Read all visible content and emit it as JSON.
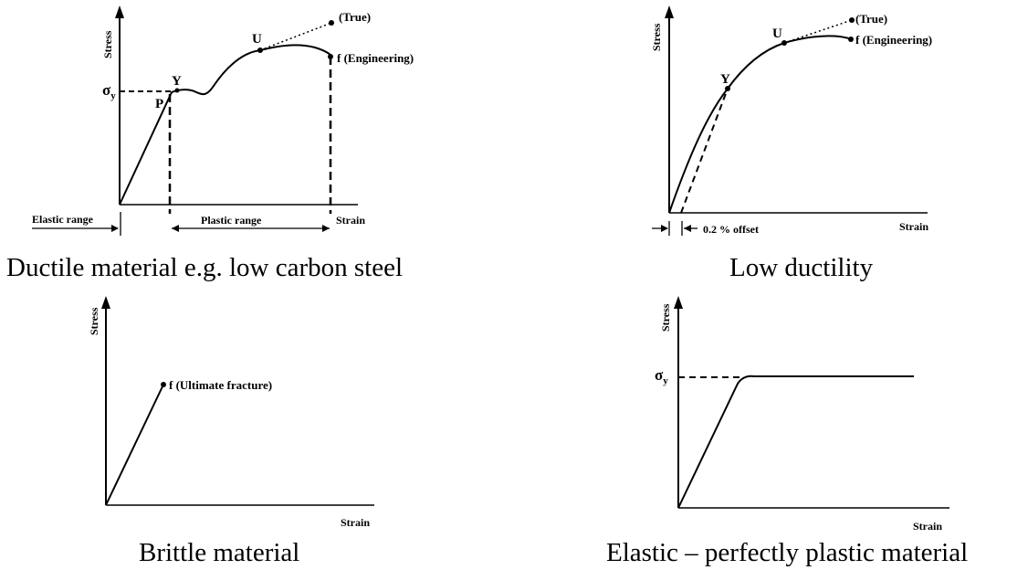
{
  "panels": {
    "ductile": {
      "caption": "Ductile material e.g. low carbon steel",
      "y_axis": "Stress",
      "x_axis": "Strain",
      "sigma": "σ",
      "sigma_sub": "y",
      "point_p": "P",
      "point_y": "Y",
      "point_u": "U",
      "true_label": "(True)",
      "eng_label": "f (Engineering)",
      "elastic_range": "Elastic range",
      "plastic_range": "Plastic range"
    },
    "low_ductility": {
      "caption": "Low ductility",
      "y_axis": "Stress",
      "x_axis": "Strain",
      "point_y": "Y",
      "point_u": "U",
      "true_label": "(True)",
      "eng_label": "f (Engineering)",
      "offset_label": "0.2 % offset"
    },
    "brittle": {
      "caption": "Brittle material",
      "y_axis": "Stress",
      "x_axis": "Strain",
      "fracture_label": "f (Ultimate fracture)"
    },
    "elastic_plastic": {
      "caption": "Elastic – perfectly plastic material",
      "y_axis": "Stress",
      "x_axis": "Strain",
      "sigma": "σ",
      "sigma_sub": "y"
    }
  }
}
